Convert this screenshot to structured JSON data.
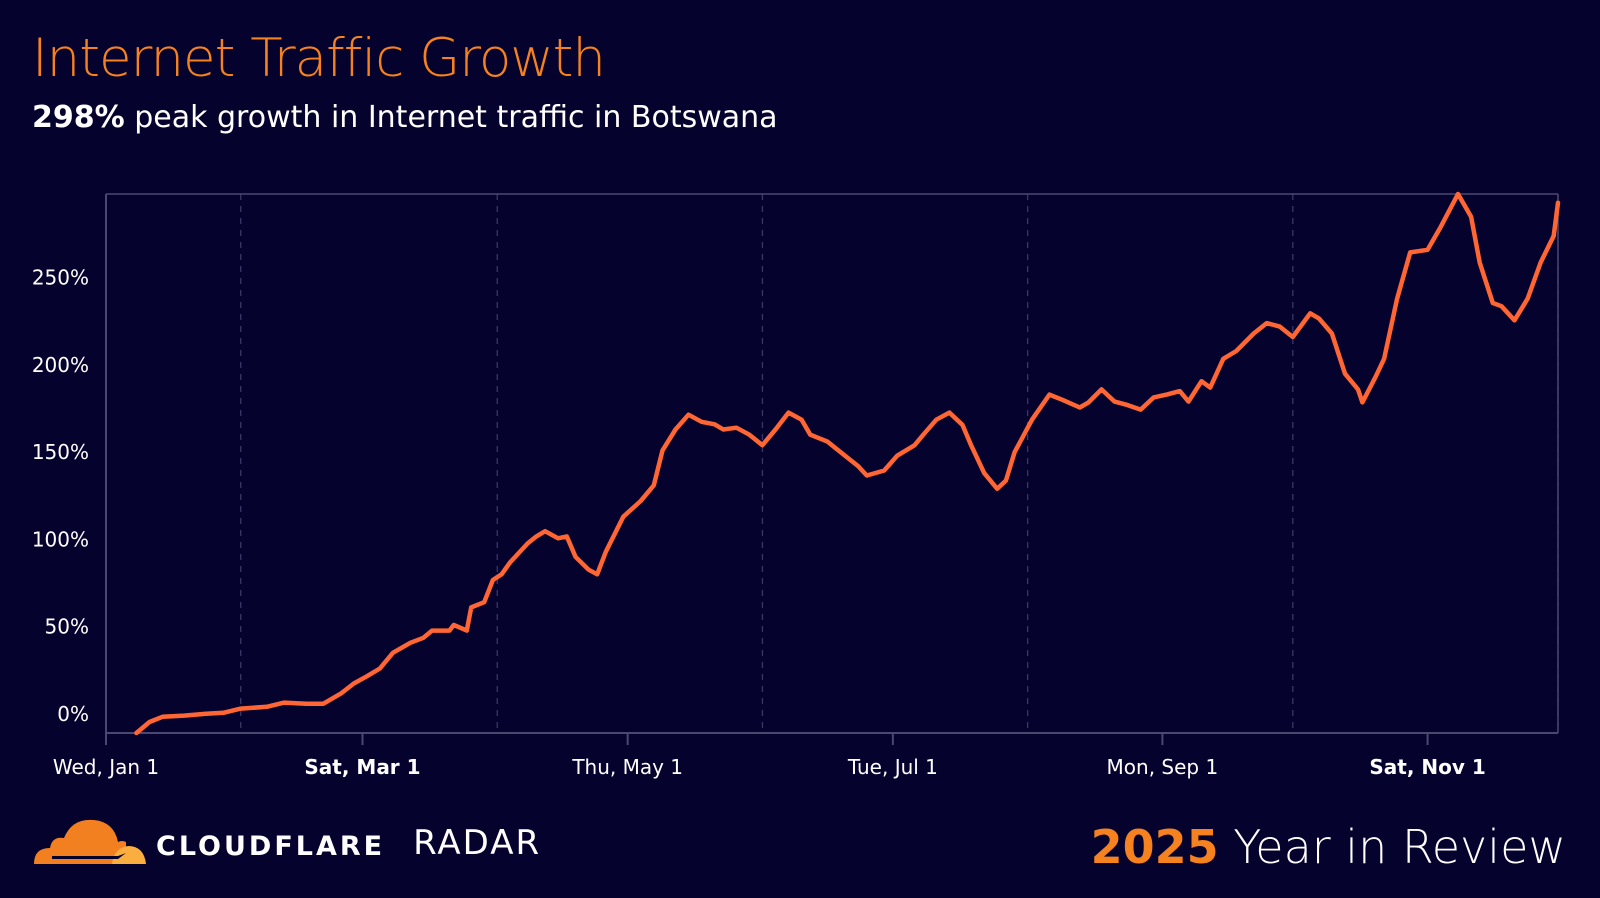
{
  "header": {
    "title": "Internet Traffic Growth",
    "subtitle_value": "298%",
    "subtitle_text": " peak growth in Internet traffic in Botswana"
  },
  "footer": {
    "brand": "CLOUDFLARE",
    "product": "RADAR",
    "year": "2025",
    "year_suffix": " Year in Review"
  },
  "colors": {
    "background": "#06022e",
    "accent": "#f6821f",
    "line": "#ff6633",
    "axis": "#4a4870",
    "grid": "#3a3868"
  },
  "chart_data": {
    "type": "line",
    "title": "",
    "xlabel": "",
    "ylabel": "",
    "xlim": [
      "2025-01-01",
      "2025-12-01"
    ],
    "ylim": [
      -11,
      298
    ],
    "grid": {
      "vertical_dashed_months": [
        "2025-02-01",
        "2025-04-01",
        "2025-06-01",
        "2025-08-01",
        "2025-10-01",
        "2025-12-01"
      ]
    },
    "x_ticks": [
      {
        "date": "2025-01-01",
        "label": "Wed, Jan 1",
        "bold": false
      },
      {
        "date": "2025-03-01",
        "label": "Sat, Mar 1",
        "bold": true
      },
      {
        "date": "2025-05-01",
        "label": "Thu, May 1",
        "bold": false
      },
      {
        "date": "2025-07-01",
        "label": "Tue, Jul 1",
        "bold": false
      },
      {
        "date": "2025-09-01",
        "label": "Mon, Sep 1",
        "bold": false
      },
      {
        "date": "2025-11-01",
        "label": "Sat, Nov 1",
        "bold": true
      }
    ],
    "y_ticks": [
      {
        "value": 0,
        "label": "0%"
      },
      {
        "value": 50,
        "label": "50%"
      },
      {
        "value": 100,
        "label": "100%"
      },
      {
        "value": 150,
        "label": "150%"
      },
      {
        "value": 200,
        "label": "200%"
      },
      {
        "value": 250,
        "label": "250%"
      }
    ],
    "series": [
      {
        "x": [
          "2025-01-08",
          "2025-01-11",
          "2025-01-14",
          "2025-01-19",
          "2025-01-24",
          "2025-01-28",
          "2025-02-01",
          "2025-02-07",
          "2025-02-11",
          "2025-02-16",
          "2025-02-20",
          "2025-02-24",
          "2025-02-27",
          "2025-03-02",
          "2025-03-05",
          "2025-03-08",
          "2025-03-12",
          "2025-03-15",
          "2025-03-17",
          "2025-03-21",
          "2025-03-22",
          "2025-03-25",
          "2025-03-26",
          "2025-03-29",
          "2025-03-31",
          "2025-04-02",
          "2025-04-04",
          "2025-04-08",
          "2025-04-10",
          "2025-04-12",
          "2025-04-15",
          "2025-04-17",
          "2025-04-19",
          "2025-04-22",
          "2025-04-24",
          "2025-04-26",
          "2025-04-30",
          "2025-05-04",
          "2025-05-07",
          "2025-05-09",
          "2025-05-12",
          "2025-05-15",
          "2025-05-18",
          "2025-05-21",
          "2025-05-23",
          "2025-05-26",
          "2025-05-29",
          "2025-06-01",
          "2025-06-04",
          "2025-06-07",
          "2025-06-10",
          "2025-06-12",
          "2025-06-16",
          "2025-06-18",
          "2025-06-23",
          "2025-06-25",
          "2025-06-29",
          "2025-07-02",
          "2025-07-06",
          "2025-07-08",
          "2025-07-11",
          "2025-07-14",
          "2025-07-17",
          "2025-07-19",
          "2025-07-22",
          "2025-07-25",
          "2025-07-27",
          "2025-07-29",
          "2025-08-02",
          "2025-08-06",
          "2025-08-09",
          "2025-08-13",
          "2025-08-15",
          "2025-08-18",
          "2025-08-21",
          "2025-08-24",
          "2025-08-27",
          "2025-08-30",
          "2025-09-02",
          "2025-09-05",
          "2025-09-07",
          "2025-09-10",
          "2025-09-12",
          "2025-09-15",
          "2025-09-18",
          "2025-09-22",
          "2025-09-25",
          "2025-09-28",
          "2025-10-01",
          "2025-10-05",
          "2025-10-07",
          "2025-10-10",
          "2025-10-13",
          "2025-10-16",
          "2025-10-17",
          "2025-10-20",
          "2025-10-22",
          "2025-10-25",
          "2025-10-28",
          "2025-11-01",
          "2025-11-04",
          "2025-11-08",
          "2025-11-11",
          "2025-11-13",
          "2025-11-16",
          "2025-11-18",
          "2025-11-21",
          "2025-11-24",
          "2025-11-27",
          "2025-11-30",
          "2025-12-01"
        ],
        "values": [
          -11,
          -4.7,
          -1.7,
          -1,
          0,
          0.6,
          3,
          4,
          6.4,
          5.8,
          5.8,
          11.6,
          17.4,
          21.5,
          26,
          35,
          40.7,
          43.6,
          47.7,
          47.7,
          51,
          47.7,
          61,
          64,
          76.7,
          80,
          87,
          97.7,
          101.7,
          104.7,
          100.6,
          101.7,
          90,
          82.6,
          80,
          93,
          113,
          122,
          131,
          151,
          163,
          171.5,
          167.4,
          166,
          163,
          164,
          160,
          154,
          163,
          172.7,
          168.6,
          160,
          156,
          152,
          142,
          136.6,
          139.5,
          148,
          154,
          160,
          168.6,
          172.7,
          165.7,
          154,
          138,
          129,
          133.7,
          150,
          168.6,
          183,
          180,
          175.6,
          178.5,
          186,
          179,
          177,
          174.4,
          181.4,
          183,
          185,
          179,
          190.7,
          187,
          203.5,
          208,
          218,
          224,
          222,
          216,
          229.6,
          226.7,
          218,
          195,
          186,
          178.5,
          193,
          203.5,
          238,
          264.5,
          266,
          279,
          298,
          285,
          258.7,
          235.5,
          233.7,
          225.6,
          238,
          258.7,
          274,
          293
        ]
      }
    ]
  }
}
